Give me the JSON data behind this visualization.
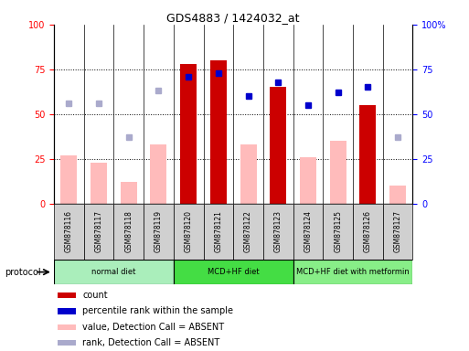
{
  "title": "GDS4883 / 1424032_at",
  "samples": [
    "GSM878116",
    "GSM878117",
    "GSM878118",
    "GSM878119",
    "GSM878120",
    "GSM878121",
    "GSM878122",
    "GSM878123",
    "GSM878124",
    "GSM878125",
    "GSM878126",
    "GSM878127"
  ],
  "count_bars": [
    null,
    null,
    null,
    null,
    78,
    80,
    null,
    65,
    null,
    null,
    55,
    null
  ],
  "value_absent_bars": [
    27,
    23,
    12,
    33,
    null,
    null,
    33,
    null,
    26,
    35,
    null,
    10
  ],
  "percentile_rank_present": [
    null,
    null,
    null,
    null,
    71,
    73,
    60,
    68,
    55,
    62,
    65,
    null
  ],
  "rank_absent": [
    56,
    56,
    37,
    63,
    null,
    null,
    null,
    null,
    null,
    null,
    null,
    37
  ],
  "groups": [
    {
      "label": "normal diet",
      "start": 0,
      "end": 3,
      "color": "#aaeebb"
    },
    {
      "label": "MCD+HF diet",
      "start": 4,
      "end": 7,
      "color": "#44dd44"
    },
    {
      "label": "MCD+HF diet with metformin",
      "start": 8,
      "end": 11,
      "color": "#88ee88"
    }
  ],
  "ylim": [
    0,
    100
  ],
  "yticks": [
    0,
    25,
    50,
    75,
    100
  ],
  "dark_red": "#cc0000",
  "light_red": "#ffbbbb",
  "dark_blue": "#0000cc",
  "light_blue": "#aaaacc",
  "group_box_color": "#d0d0d0",
  "legend": [
    {
      "color": "#cc0000",
      "label": "count"
    },
    {
      "color": "#0000cc",
      "label": "percentile rank within the sample"
    },
    {
      "color": "#ffbbbb",
      "label": "value, Detection Call = ABSENT"
    },
    {
      "color": "#aaaacc",
      "label": "rank, Detection Call = ABSENT"
    }
  ]
}
